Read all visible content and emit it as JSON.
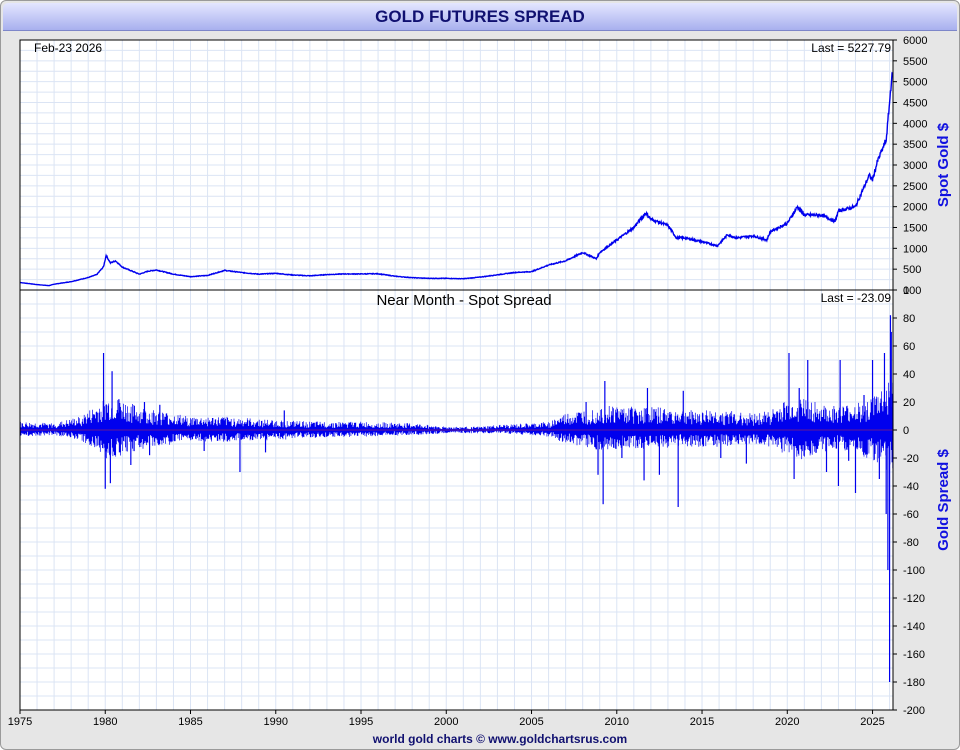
{
  "title": "GOLD FUTURES SPREAD",
  "date_label": "Feb-23  2026",
  "footer": "world gold charts © www.goldchartsrus.com",
  "colors": {
    "series": "#0000ee",
    "grid": "#dbe4f4",
    "title_text": "#101070"
  },
  "chart_data": [
    {
      "type": "line",
      "ylabel": "Spot Gold $",
      "last_label": "Last = 5227.79",
      "ylim": [
        0,
        6000
      ],
      "yticks": [
        "0",
        "500",
        "1000",
        "1500",
        "2000",
        "2500",
        "3000",
        "3500",
        "4000",
        "4500",
        "5000",
        "5500",
        "6000"
      ],
      "xlim": [
        1975,
        2026.2
      ],
      "grid": true,
      "series": [
        {
          "x": [
            1975,
            1976,
            1976.7,
            1977,
            1978,
            1979,
            1979.5,
            1979.9,
            1980.05,
            1980.3,
            1980.6,
            1981,
            1982,
            1982.5,
            1983,
            1984,
            1985,
            1986,
            1987,
            1988,
            1989,
            1990,
            1991,
            1992,
            1993,
            1994,
            1995,
            1996,
            1997,
            1998,
            1999,
            2000,
            2001,
            2002,
            2003,
            2004,
            2005,
            2006,
            2007,
            2008,
            2008.8,
            2009,
            2010,
            2011,
            2011.7,
            2012,
            2013,
            2013.5,
            2014,
            2015,
            2015.9,
            2016.5,
            2017,
            2018,
            2018.8,
            2019,
            2020,
            2020.6,
            2021,
            2022,
            2022.8,
            2023,
            2024,
            2024.8,
            2025,
            2025.3,
            2025.6,
            2025.8,
            2026,
            2026.1,
            2026.15
          ],
          "y": [
            180,
            130,
            105,
            140,
            200,
            300,
            370,
            560,
            830,
            650,
            700,
            550,
            380,
            450,
            480,
            380,
            320,
            350,
            470,
            420,
            380,
            400,
            360,
            340,
            370,
            385,
            385,
            390,
            330,
            295,
            280,
            280,
            270,
            310,
            365,
            420,
            440,
            600,
            700,
            900,
            750,
            900,
            1200,
            1500,
            1850,
            1700,
            1550,
            1250,
            1250,
            1160,
            1060,
            1330,
            1250,
            1300,
            1200,
            1400,
            1600,
            2000,
            1800,
            1800,
            1650,
            1900,
            2000,
            2750,
            2650,
            3100,
            3400,
            3600,
            4500,
            5000,
            5227.79
          ]
        }
      ]
    },
    {
      "type": "bar",
      "title": "Near Month - Spot Spread",
      "ylabel": "Gold Spread $",
      "last_label": "Last = -23.09",
      "ylim": [
        -200,
        100
      ],
      "yticks": [
        "-200",
        "-180",
        "-160",
        "-140",
        "-120",
        "-100",
        "-80",
        "-60",
        "-40",
        "-20",
        "0",
        "20",
        "40",
        "60",
        "80",
        "100"
      ],
      "xlim": [
        1975,
        2026.2
      ],
      "xticks": [
        "1975",
        "1980",
        "1985",
        "1990",
        "1995",
        "2000",
        "2005",
        "2010",
        "2015",
        "2020",
        "2025"
      ],
      "grid": true,
      "envelope": {
        "x": [
          1975,
          1977,
          1978.5,
          1979.5,
          1980,
          1981,
          1982,
          1983,
          1985,
          1987,
          1990,
          1992,
          1995,
          1998,
          2000,
          2002,
          2003,
          2005,
          2006,
          2007,
          2008,
          2009,
          2010,
          2012,
          2014,
          2016,
          2018,
          2019,
          2020,
          2021,
          2022,
          2023,
          2024,
          2025,
          2025.5,
          2026,
          2026.2
        ],
        "up": [
          5,
          4,
          8,
          15,
          20,
          18,
          14,
          12,
          8,
          8,
          6,
          5,
          5,
          4,
          2,
          2,
          3,
          4,
          5,
          10,
          12,
          15,
          15,
          14,
          12,
          12,
          10,
          12,
          18,
          20,
          15,
          14,
          16,
          20,
          25,
          30,
          30
        ],
        "dn": [
          -4,
          -3,
          -6,
          -12,
          -18,
          -15,
          -12,
          -10,
          -7,
          -7,
          -6,
          -5,
          -4,
          -3,
          -2,
          -2,
          -2,
          -3,
          -4,
          -8,
          -10,
          -12,
          -12,
          -11,
          -10,
          -10,
          -9,
          -10,
          -15,
          -18,
          -13,
          -12,
          -14,
          -18,
          -22,
          -25,
          -25
        ]
      },
      "spikes": [
        {
          "x": 1979.9,
          "y": 55
        },
        {
          "x": 1980.0,
          "y": -42
        },
        {
          "x": 1980.3,
          "y": -38
        },
        {
          "x": 1980.4,
          "y": 42
        },
        {
          "x": 1980.8,
          "y": 22
        },
        {
          "x": 1981.5,
          "y": -25
        },
        {
          "x": 1982.3,
          "y": 20
        },
        {
          "x": 1982.6,
          "y": -18
        },
        {
          "x": 1983.2,
          "y": 18
        },
        {
          "x": 1985.8,
          "y": -15
        },
        {
          "x": 1987.9,
          "y": -30
        },
        {
          "x": 1989.4,
          "y": -16
        },
        {
          "x": 1990.5,
          "y": 14
        },
        {
          "x": 2008.2,
          "y": 20
        },
        {
          "x": 2008.9,
          "y": -32
        },
        {
          "x": 2009.2,
          "y": -53
        },
        {
          "x": 2009.3,
          "y": 35
        },
        {
          "x": 2010.3,
          "y": -20
        },
        {
          "x": 2011.6,
          "y": -36
        },
        {
          "x": 2011.8,
          "y": 30
        },
        {
          "x": 2012.5,
          "y": -32
        },
        {
          "x": 2013.6,
          "y": -55
        },
        {
          "x": 2013.9,
          "y": 28
        },
        {
          "x": 2016.1,
          "y": -20
        },
        {
          "x": 2017.6,
          "y": -24
        },
        {
          "x": 2020.1,
          "y": 55
        },
        {
          "x": 2020.4,
          "y": -35
        },
        {
          "x": 2020.7,
          "y": 30
        },
        {
          "x": 2021.2,
          "y": 50
        },
        {
          "x": 2022.3,
          "y": -30
        },
        {
          "x": 2023.0,
          "y": -40
        },
        {
          "x": 2023.1,
          "y": 50
        },
        {
          "x": 2023.6,
          "y": -22
        },
        {
          "x": 2024.0,
          "y": -45
        },
        {
          "x": 2024.5,
          "y": 25
        },
        {
          "x": 2025.0,
          "y": 50
        },
        {
          "x": 2025.4,
          "y": -35
        },
        {
          "x": 2025.7,
          "y": 55
        },
        {
          "x": 2025.8,
          "y": -60
        },
        {
          "x": 2025.9,
          "y": -100
        },
        {
          "x": 2026.0,
          "y": -180
        },
        {
          "x": 2026.05,
          "y": 82
        },
        {
          "x": 2026.1,
          "y": 70
        },
        {
          "x": 2026.15,
          "y": -23.09
        }
      ]
    }
  ]
}
